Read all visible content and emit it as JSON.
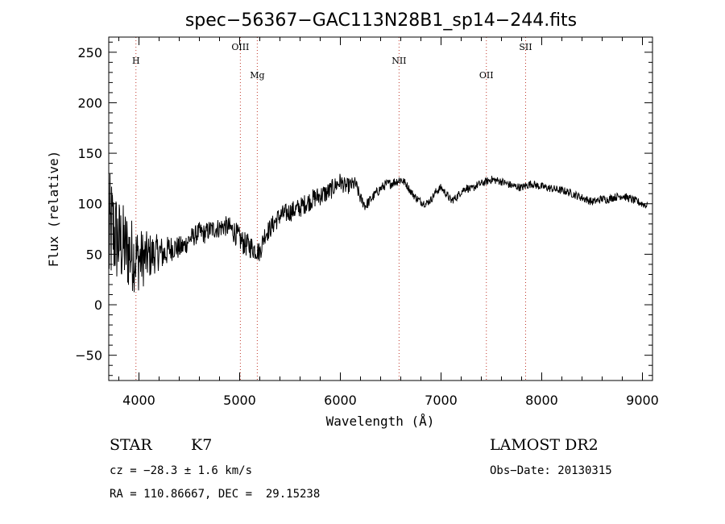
{
  "chart_data": {
    "type": "line",
    "title": "spec−56367−GAC113N28B1_sp14−244.fits",
    "xlabel": "Wavelength (Å)",
    "ylabel": "Flux (relative)",
    "xlim": [
      3700,
      9100
    ],
    "ylim": [
      -75,
      265
    ],
    "xticks": [
      4000,
      5000,
      6000,
      7000,
      8000,
      9000
    ],
    "xtick_labels": [
      "4000",
      "5000",
      "6000",
      "7000",
      "8000",
      "9000"
    ],
    "yticks": [
      -50,
      0,
      50,
      100,
      150,
      200,
      250
    ],
    "ytick_labels": [
      "−50",
      "0",
      "50",
      "100",
      "150",
      "200",
      "250"
    ],
    "spectral_lines": [
      {
        "name": "H",
        "wavelength": 3970,
        "level": "high"
      },
      {
        "name": "OIII",
        "wavelength": 5007,
        "level": "top"
      },
      {
        "name": "Mg",
        "wavelength": 5175,
        "level": "low"
      },
      {
        "name": "NII",
        "wavelength": 6583,
        "level": "high"
      },
      {
        "name": "OII",
        "wavelength": 7450,
        "level": "low"
      },
      {
        "name": "SII",
        "wavelength": 7840,
        "level": "top"
      }
    ],
    "series": [
      {
        "x": [
          3700,
          3730,
          3760,
          3800,
          3850,
          3900,
          3950,
          4000,
          4050,
          4100,
          4150,
          4200,
          4250,
          4300,
          4350,
          4400,
          4450,
          4500,
          4550,
          4600,
          4650,
          4700,
          4750,
          4800,
          4850,
          4900,
          4950,
          5000,
          5050,
          5100,
          5150,
          5200,
          5250,
          5300,
          5350,
          5400,
          5450,
          5500,
          5550,
          5600,
          5650,
          5700,
          5750,
          5800,
          5850,
          5890,
          5950,
          6000,
          6050,
          6100,
          6150,
          6200,
          6250,
          6300,
          6350,
          6400,
          6450,
          6500,
          6550,
          6600,
          6650,
          6700,
          6750,
          6800,
          6850,
          6900,
          6950,
          7000,
          7050,
          7100,
          7150,
          7200,
          7250,
          7300,
          7350,
          7400,
          7450,
          7500,
          7550,
          7600,
          7650,
          7700,
          7750,
          7800,
          7850,
          7900,
          7950,
          8000,
          8050,
          8100,
          8150,
          8200,
          8250,
          8300,
          8350,
          8400,
          8450,
          8500,
          8550,
          8600,
          8650,
          8700,
          8750,
          8800,
          8850,
          8900,
          8950,
          9000,
          9050
        ],
        "y": [
          60,
          75,
          68,
          62,
          58,
          52,
          48,
          45,
          46,
          48,
          50,
          52,
          50,
          55,
          57,
          56,
          58,
          65,
          68,
          72,
          70,
          74,
          75,
          76,
          78,
          76,
          72,
          65,
          60,
          58,
          55,
          52,
          70,
          75,
          82,
          88,
          90,
          92,
          94,
          96,
          100,
          103,
          106,
          108,
          110,
          112,
          118,
          122,
          117,
          118,
          120,
          105,
          98,
          104,
          110,
          115,
          119,
          120,
          122,
          124,
          120,
          112,
          106,
          102,
          100,
          104,
          112,
          116,
          110,
          103,
          106,
          112,
          116,
          114,
          118,
          120,
          122,
          124,
          123,
          122,
          120,
          118,
          117,
          116,
          118,
          120,
          118,
          117,
          116,
          115,
          114,
          113,
          112,
          110,
          108,
          106,
          104,
          102,
          103,
          105,
          104,
          106,
          107,
          108,
          106,
          104,
          102,
          100,
          98
        ],
        "noise": [
          70,
          55,
          50,
          45,
          42,
          40,
          36,
          32,
          28,
          24,
          20,
          18,
          16,
          14,
          12,
          12,
          11,
          10,
          10,
          10,
          10,
          10,
          10,
          10,
          10,
          11,
          12,
          12,
          12,
          12,
          11,
          10,
          10,
          10,
          10,
          10,
          10,
          10,
          10,
          10,
          10,
          10,
          10,
          10,
          10,
          10,
          9,
          9,
          8,
          8,
          7,
          6,
          6,
          5,
          5,
          5,
          5,
          5,
          5,
          5,
          4,
          4,
          4,
          4,
          4,
          4,
          4,
          4,
          4,
          4,
          4,
          4,
          4,
          4,
          4,
          4,
          4,
          4,
          4,
          4,
          4,
          4,
          4,
          4,
          4,
          4,
          4,
          4,
          4,
          4,
          4,
          4,
          4,
          4,
          4,
          4,
          4,
          4,
          4,
          4,
          4,
          4,
          4,
          4,
          4,
          4,
          4,
          4,
          4
        ]
      }
    ]
  },
  "info": {
    "object_class": "STAR",
    "subclass": "K7",
    "survey": "LAMOST DR2",
    "cz": "cz = −28.3 ± 1.6 km/s",
    "obs_date": "Obs−Date: 20130315",
    "coords": "RA = 110.86667, DEC =  29.15238"
  }
}
